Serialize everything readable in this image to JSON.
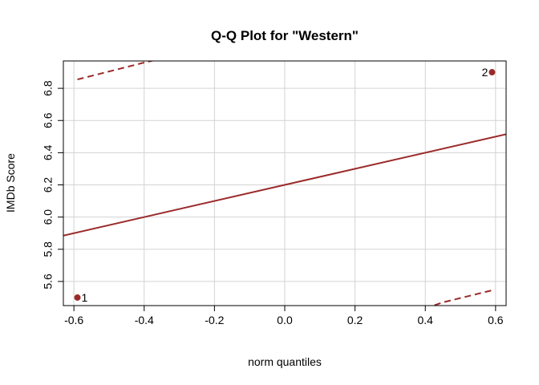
{
  "chart_data": {
    "type": "scatter",
    "title": "Q-Q Plot for \"Western\"",
    "xlabel": "norm quantiles",
    "ylabel": "IMDb Score",
    "xlim": [
      -0.63,
      0.63
    ],
    "ylim": [
      5.45,
      6.97
    ],
    "x_ticks": [
      -0.6,
      -0.4,
      -0.2,
      0.0,
      0.2,
      0.4,
      0.6
    ],
    "y_ticks": [
      5.6,
      5.8,
      6.0,
      6.2,
      6.4,
      6.6,
      6.8
    ],
    "grid": true,
    "points": [
      {
        "x": -0.59,
        "y": 5.5,
        "label": "1"
      },
      {
        "x": 0.59,
        "y": 6.9,
        "label": "2"
      }
    ],
    "reference_line": {
      "intercept": 6.2,
      "slope": 0.5
    },
    "confidence_band": {
      "upper": [
        {
          "x": -0.59,
          "y": 6.855
        },
        {
          "x": -0.4,
          "y": 6.96
        },
        {
          "x": -0.34,
          "y": 6.99
        }
      ],
      "lower": [
        {
          "x": 0.37,
          "y": 5.41
        },
        {
          "x": 0.45,
          "y": 5.47
        },
        {
          "x": 0.59,
          "y": 5.545
        }
      ]
    },
    "colors": {
      "series": "#9b2a2a",
      "grid": "#d3d3d3",
      "axis": "#000000"
    }
  }
}
